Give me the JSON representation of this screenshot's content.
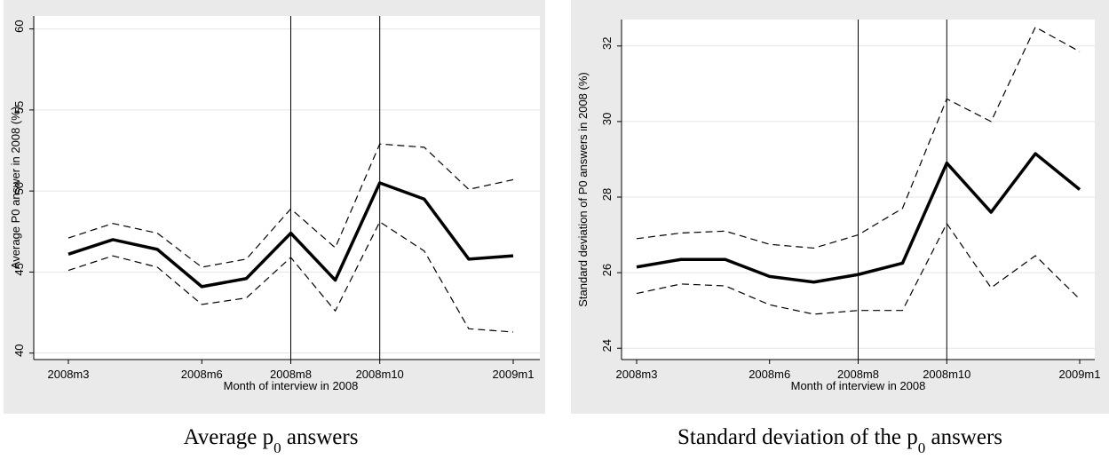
{
  "chart_data": [
    {
      "type": "line",
      "ylabel": "Average P0 answer in 2008 (%)",
      "xlabel": "Month of interview in 2008",
      "caption": {
        "before": "Average p",
        "sub": "0",
        "after": " answers"
      },
      "categories": [
        "2008m3",
        null,
        null,
        "2008m6",
        null,
        "2008m8",
        null,
        "2008m10",
        null,
        null,
        "2009m1"
      ],
      "xlines": [
        "2008m8",
        "2008m10"
      ],
      "ylim": [
        39.6,
        60.8
      ],
      "yticks": [
        40,
        45,
        50,
        55,
        60
      ],
      "grid": true,
      "series": [
        {
          "style": "dashed",
          "color": "#000000",
          "values": [
            47.1,
            48.0,
            47.4,
            45.3,
            45.8,
            48.9,
            46.5,
            52.9,
            52.7,
            50.1,
            50.7
          ]
        },
        {
          "style": "solid",
          "color": "#000000",
          "values": [
            46.1,
            47.0,
            46.4,
            44.1,
            44.6,
            47.4,
            44.5,
            50.5,
            49.5,
            45.8,
            46.0
          ]
        },
        {
          "style": "dashed",
          "color": "#000000",
          "values": [
            45.1,
            46.0,
            45.3,
            43.0,
            43.4,
            45.9,
            42.6,
            48.1,
            46.3,
            41.5,
            41.3
          ]
        }
      ]
    },
    {
      "type": "line",
      "ylabel": "Standard deviation of P0 answers in 2008 (%)",
      "xlabel": "Month of interview in 2008",
      "caption": {
        "before": "Standard deviation of the p",
        "sub": "0",
        "after": " answers"
      },
      "categories": [
        "2008m3",
        null,
        null,
        "2008m6",
        null,
        "2008m8",
        null,
        "2008m10",
        null,
        null,
        "2009m1"
      ],
      "xlines": [
        "2008m8",
        "2008m10"
      ],
      "ylim": [
        23.7,
        32.7
      ],
      "yticks": [
        24,
        26,
        28,
        30,
        32
      ],
      "grid": true,
      "series": [
        {
          "style": "dashed",
          "color": "#000000",
          "values": [
            26.9,
            27.05,
            27.1,
            26.75,
            26.65,
            27.0,
            27.7,
            30.6,
            30.0,
            32.5,
            31.85
          ]
        },
        {
          "style": "solid",
          "color": "#000000",
          "values": [
            26.15,
            26.35,
            26.35,
            25.9,
            25.75,
            25.95,
            26.25,
            28.9,
            27.6,
            29.15,
            28.2
          ]
        },
        {
          "style": "dashed",
          "color": "#000000",
          "values": [
            25.45,
            25.7,
            25.65,
            25.15,
            24.9,
            25.0,
            25.0,
            27.3,
            25.6,
            26.45,
            25.3
          ]
        }
      ]
    }
  ]
}
